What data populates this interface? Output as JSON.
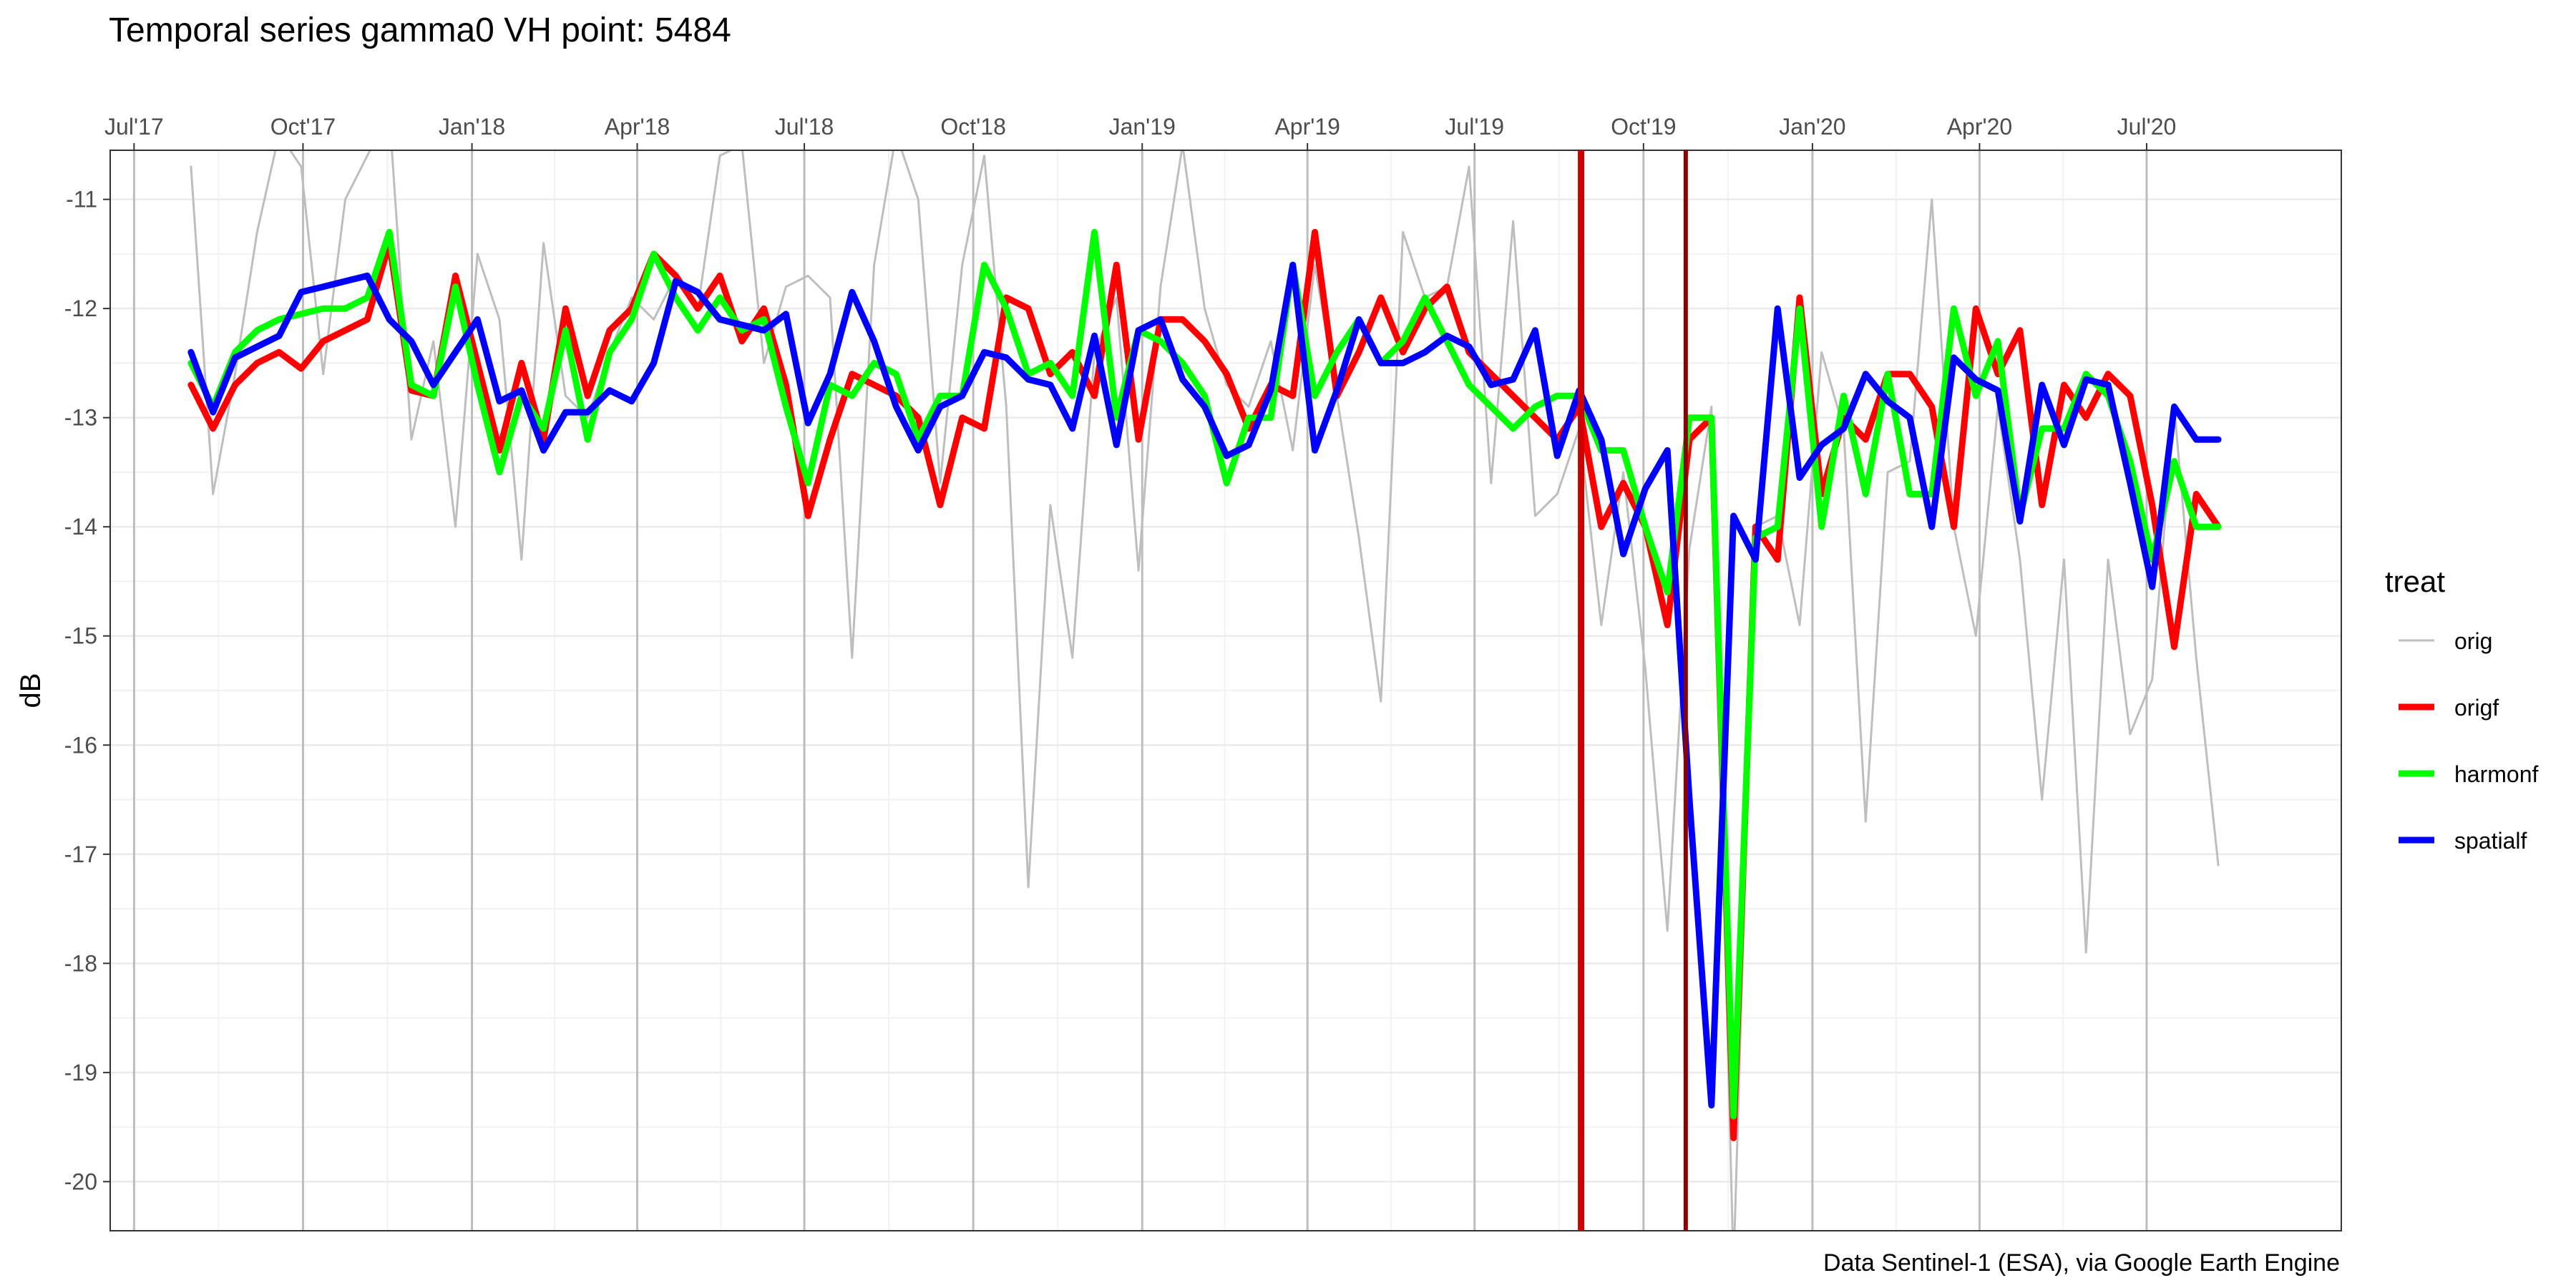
{
  "chart_data": {
    "type": "line",
    "title": "Temporal series gamma0 VH point: 5484",
    "xlabel": "",
    "ylabel": "dB",
    "caption": "Data Sentinel-1 (ESA), via Google Earth Engine",
    "legend_title": "treat",
    "legend_position": "right",
    "grid": true,
    "x_axis_position": "top",
    "xlim": [
      "2017-06-18",
      "2020-10-15"
    ],
    "ylim": [
      -20.45,
      -10.55
    ],
    "x_ticks": [
      {
        "date": "2017-07-01",
        "label": "Jul'17"
      },
      {
        "date": "2017-10-01",
        "label": "Oct'17"
      },
      {
        "date": "2018-01-01",
        "label": "Jan'18"
      },
      {
        "date": "2018-04-01",
        "label": "Apr'18"
      },
      {
        "date": "2018-07-01",
        "label": "Jul'18"
      },
      {
        "date": "2018-10-01",
        "label": "Oct'18"
      },
      {
        "date": "2019-01-01",
        "label": "Jan'19"
      },
      {
        "date": "2019-04-01",
        "label": "Apr'19"
      },
      {
        "date": "2019-07-01",
        "label": "Jul'19"
      },
      {
        "date": "2019-10-01",
        "label": "Oct'19"
      },
      {
        "date": "2020-01-01",
        "label": "Jan'20"
      },
      {
        "date": "2020-04-01",
        "label": "Apr'20"
      },
      {
        "date": "2020-07-01",
        "label": "Jul'20"
      }
    ],
    "y_ticks": [
      -20,
      -19,
      -18,
      -17,
      -16,
      -15,
      -14,
      -13,
      -12,
      -11
    ],
    "vertical_lines": [
      {
        "date": "2019-08-28",
        "color": "#cc0000"
      },
      {
        "date": "2019-10-24",
        "color": "#8b0000"
      }
    ],
    "x": [
      "2017-08-01",
      "2017-08-13",
      "2017-08-25",
      "2017-09-06",
      "2017-09-18",
      "2017-09-30",
      "2017-10-12",
      "2017-10-24",
      "2017-11-05",
      "2017-11-17",
      "2017-11-29",
      "2017-12-11",
      "2017-12-23",
      "2018-01-04",
      "2018-01-16",
      "2018-01-28",
      "2018-02-09",
      "2018-02-21",
      "2018-03-05",
      "2018-03-17",
      "2018-03-29",
      "2018-04-10",
      "2018-04-22",
      "2018-05-04",
      "2018-05-16",
      "2018-05-28",
      "2018-06-09",
      "2018-06-21",
      "2018-07-03",
      "2018-07-15",
      "2018-07-27",
      "2018-08-08",
      "2018-08-20",
      "2018-09-01",
      "2018-09-13",
      "2018-09-25",
      "2018-10-07",
      "2018-10-19",
      "2018-10-31",
      "2018-11-12",
      "2018-11-24",
      "2018-12-06",
      "2018-12-18",
      "2018-12-30",
      "2019-01-11",
      "2019-01-23",
      "2019-02-04",
      "2019-02-16",
      "2019-02-28",
      "2019-03-12",
      "2019-03-24",
      "2019-04-05",
      "2019-04-17",
      "2019-04-29",
      "2019-05-11",
      "2019-05-23",
      "2019-06-04",
      "2019-06-16",
      "2019-06-28",
      "2019-07-10",
      "2019-07-22",
      "2019-08-03",
      "2019-08-15",
      "2019-08-27",
      "2019-09-08",
      "2019-09-20",
      "2019-10-02",
      "2019-10-14",
      "2019-10-26",
      "2019-11-07",
      "2019-11-19",
      "2019-12-01",
      "2019-12-13",
      "2019-12-25",
      "2020-01-06",
      "2020-01-18",
      "2020-01-30",
      "2020-02-11",
      "2020-02-23",
      "2020-03-06",
      "2020-03-18",
      "2020-03-30",
      "2020-04-11",
      "2020-04-23",
      "2020-05-05",
      "2020-05-17",
      "2020-05-29",
      "2020-06-10",
      "2020-06-22",
      "2020-07-04",
      "2020-07-16",
      "2020-07-28",
      "2020-08-09"
    ],
    "series": [
      {
        "name": "orig",
        "color": "#bebebe",
        "values": [
          -10.7,
          -13.7,
          -12.6,
          -11.3,
          -10.4,
          -10.7,
          -12.6,
          -11.0,
          -10.6,
          -10.2,
          -13.2,
          -12.3,
          -14.0,
          -11.5,
          -12.1,
          -14.3,
          -11.4,
          -12.8,
          -13.0,
          -12.4,
          -11.9,
          -12.1,
          -11.7,
          -12.0,
          -10.6,
          -10.5,
          -12.5,
          -11.8,
          -11.7,
          -11.9,
          -15.2,
          -11.6,
          -10.4,
          -11.0,
          -13.6,
          -11.6,
          -10.6,
          -12.9,
          -17.3,
          -13.8,
          -15.2,
          -12.4,
          -11.9,
          -14.4,
          -11.8,
          -10.5,
          -12.0,
          -12.7,
          -12.9,
          -12.3,
          -13.3,
          -11.6,
          -12.8,
          -14.1,
          -15.6,
          -11.3,
          -11.9,
          -11.8,
          -10.7,
          -13.6,
          -11.2,
          -13.9,
          -13.7,
          -13.1,
          -14.9,
          -13.5,
          -15.3,
          -17.7,
          -14.2,
          -12.9,
          -20.8,
          -14.0,
          -13.9,
          -14.9,
          -12.4,
          -13.1,
          -16.7,
          -13.5,
          -13.4,
          -11.0,
          -14.0,
          -15.0,
          -12.9,
          -14.3,
          -16.5,
          -14.3,
          -17.9,
          -14.3,
          -15.9,
          -15.4,
          -12.9,
          -15.2,
          -17.1
        ]
      },
      {
        "name": "origf",
        "color": "#ff0000",
        "values": [
          -12.7,
          -13.1,
          -12.7,
          -12.5,
          -12.4,
          -12.55,
          -12.3,
          -12.2,
          -12.1,
          -11.4,
          -12.75,
          -12.8,
          -11.7,
          -12.5,
          -13.3,
          -12.5,
          -13.2,
          -12.0,
          -12.8,
          -12.2,
          -12.0,
          -11.5,
          -11.7,
          -12.0,
          -11.7,
          -12.3,
          -12.0,
          -12.7,
          -13.9,
          -13.2,
          -12.6,
          -12.7,
          -12.8,
          -13.0,
          -13.8,
          -13.0,
          -13.1,
          -11.9,
          -12.0,
          -12.6,
          -12.4,
          -12.8,
          -11.6,
          -13.2,
          -12.1,
          -12.1,
          -12.3,
          -12.6,
          -13.1,
          -12.7,
          -12.8,
          -11.3,
          -12.8,
          -12.4,
          -11.9,
          -12.4,
          -12.0,
          -11.8,
          -12.4,
          -12.6,
          -12.8,
          -13.0,
          -13.2,
          -12.9,
          -14.0,
          -13.6,
          -14.0,
          -14.9,
          -13.2,
          -13.0,
          -19.6,
          -14.0,
          -14.3,
          -11.9,
          -13.7,
          -13.0,
          -13.2,
          -12.6,
          -12.6,
          -12.9,
          -14.0,
          -12.0,
          -12.6,
          -12.2,
          -13.8,
          -12.7,
          -13.0,
          -12.6,
          -12.8,
          -13.8,
          -15.1,
          -13.7,
          -14.0
        ]
      },
      {
        "name": "harmonf",
        "color": "#00ff00",
        "values": [
          -12.5,
          -12.9,
          -12.4,
          -12.2,
          -12.1,
          -12.05,
          -12.0,
          -12.0,
          -11.9,
          -11.3,
          -12.7,
          -12.8,
          -11.8,
          -12.7,
          -13.5,
          -12.8,
          -13.1,
          -12.2,
          -13.2,
          -12.4,
          -12.1,
          -11.5,
          -11.9,
          -12.2,
          -11.9,
          -12.2,
          -12.1,
          -12.9,
          -13.6,
          -12.7,
          -12.8,
          -12.5,
          -12.6,
          -13.2,
          -12.8,
          -12.8,
          -11.6,
          -12.0,
          -12.6,
          -12.5,
          -12.8,
          -11.3,
          -13.0,
          -12.2,
          -12.3,
          -12.5,
          -12.8,
          -13.6,
          -13.0,
          -13.0,
          -11.6,
          -12.8,
          -12.4,
          -12.1,
          -12.5,
          -12.3,
          -11.9,
          -12.3,
          -12.7,
          -12.9,
          -13.1,
          -12.9,
          -12.8,
          -12.8,
          -13.3,
          -13.3,
          -14.0,
          -14.6,
          -13.0,
          -13.0,
          -19.4,
          -14.1,
          -14.0,
          -12.0,
          -14.0,
          -12.8,
          -13.7,
          -12.6,
          -13.7,
          -13.7,
          -12.0,
          -12.8,
          -12.3,
          -13.9,
          -13.1,
          -13.1,
          -12.6,
          -12.8,
          -13.4,
          -14.3,
          -13.4,
          -14.0,
          -14.0
        ]
      },
      {
        "name": "spatialf",
        "color": "#0000ff",
        "values": [
          -12.4,
          -12.95,
          -12.45,
          -12.35,
          -12.25,
          -11.85,
          -11.8,
          -11.75,
          -11.7,
          -12.1,
          -12.3,
          -12.7,
          -12.4,
          -12.1,
          -12.85,
          -12.75,
          -13.3,
          -12.95,
          -12.95,
          -12.75,
          -12.85,
          -12.5,
          -11.75,
          -11.85,
          -12.1,
          -12.15,
          -12.2,
          -12.05,
          -13.05,
          -12.6,
          -11.85,
          -12.3,
          -12.9,
          -13.3,
          -12.9,
          -12.8,
          -12.4,
          -12.45,
          -12.65,
          -12.7,
          -13.1,
          -12.25,
          -13.25,
          -12.2,
          -12.1,
          -12.65,
          -12.9,
          -13.35,
          -13.25,
          -12.75,
          -11.6,
          -13.3,
          -12.75,
          -12.1,
          -12.5,
          -12.5,
          -12.4,
          -12.25,
          -12.35,
          -12.7,
          -12.65,
          -12.2,
          -13.35,
          -12.75,
          -13.2,
          -14.25,
          -13.65,
          -13.3,
          -16.5,
          -19.3,
          -13.9,
          -14.3,
          -12.0,
          -13.55,
          -13.25,
          -13.1,
          -12.6,
          -12.85,
          -13.0,
          -14.0,
          -12.45,
          -12.65,
          -12.75,
          -13.95,
          -12.7,
          -13.25,
          -12.65,
          -12.7,
          -13.6,
          -14.55,
          -12.9,
          -13.2,
          -13.2
        ]
      }
    ]
  }
}
